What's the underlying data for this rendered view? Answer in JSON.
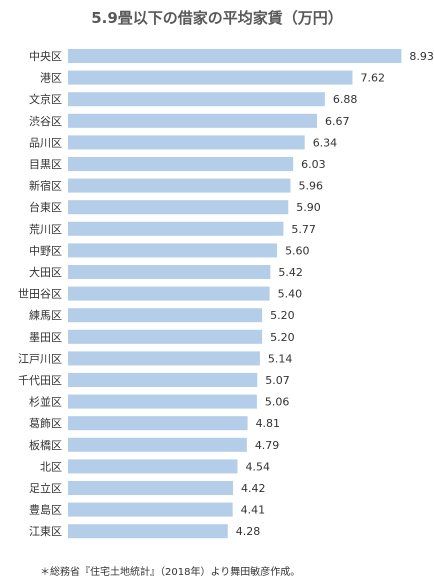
{
  "chart_data": {
    "type": "bar",
    "orientation": "horizontal",
    "title": "5.9畳以下の借家の平均家賃（万円）",
    "categories": [
      "中央区",
      "港区",
      "文京区",
      "渋谷区",
      "品川区",
      "目黒区",
      "新宿区",
      "台東区",
      "荒川区",
      "中野区",
      "大田区",
      "世田谷区",
      "練馬区",
      "墨田区",
      "江戸川区",
      "千代田区",
      "杉並区",
      "葛飾区",
      "板橋区",
      "北区",
      "足立区",
      "豊島区",
      "江東区"
    ],
    "values": [
      8.93,
      7.62,
      6.88,
      6.67,
      6.34,
      6.03,
      5.96,
      5.9,
      5.77,
      5.6,
      5.42,
      5.4,
      5.2,
      5.2,
      5.14,
      5.07,
      5.06,
      4.81,
      4.79,
      4.54,
      4.42,
      4.41,
      4.28
    ],
    "value_labels": [
      "8.93",
      "7.62",
      "6.88",
      "6.67",
      "6.34",
      "6.03",
      "5.96",
      "5.90",
      "5.77",
      "5.60",
      "5.42",
      "5.40",
      "5.20",
      "5.20",
      "5.14",
      "5.07",
      "5.06",
      "4.81",
      "4.79",
      "4.54",
      "4.42",
      "4.41",
      "4.28"
    ],
    "xlim": [
      0,
      9.0
    ],
    "grid": false,
    "bar_color": "#b4cde9",
    "label_color": "#333333"
  },
  "source_note": "＊総務省『住宅土地統計』（2018年）より舞田敏彦作成。"
}
